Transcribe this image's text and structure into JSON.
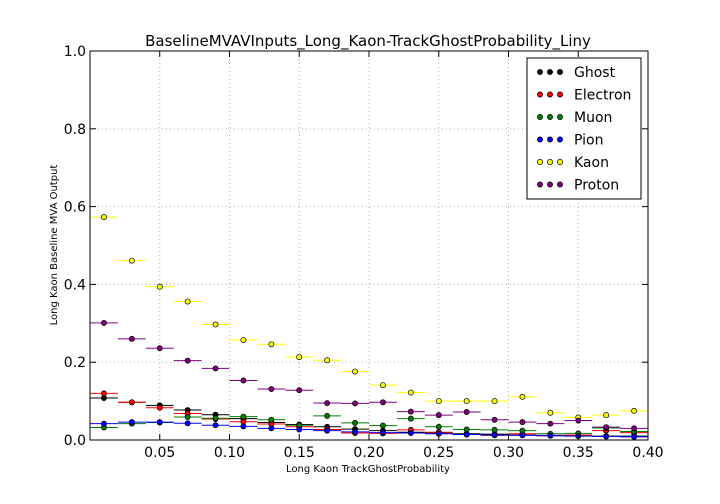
{
  "chart_data": {
    "type": "scatter",
    "title": "BaselineMVAVInputs_Long_Kaon-TrackGhostProbability_Liny",
    "xlabel": "Long Kaon TrackGhostProbability",
    "ylabel": "Long Kaon Baseline MVA Output",
    "xlim": [
      0.0,
      0.4
    ],
    "ylim": [
      0.0,
      1.0
    ],
    "x_ticks": [
      0.05,
      0.1,
      0.15,
      0.2,
      0.25,
      0.3,
      0.35,
      0.4
    ],
    "x_tick_labels": [
      "0.05",
      "0.10",
      "0.15",
      "0.20",
      "0.25",
      "0.30",
      "0.35",
      "0.40"
    ],
    "y_ticks": [
      0.0,
      0.2,
      0.4,
      0.6,
      0.8,
      1.0
    ],
    "y_tick_labels": [
      "0.0",
      "0.2",
      "0.4",
      "0.6",
      "0.8",
      "1.0"
    ],
    "grid": true,
    "legend_position": "top-right",
    "bin_width": 0.02,
    "x": [
      0.01,
      0.03,
      0.05,
      0.07,
      0.09,
      0.11,
      0.13,
      0.15,
      0.17,
      0.19,
      0.21,
      0.23,
      0.25,
      0.27,
      0.29,
      0.31,
      0.33,
      0.35,
      0.37,
      0.39
    ],
    "series": [
      {
        "name": "Ghost",
        "color": "#000000",
        "values": [
          0.108,
          0.097,
          0.089,
          0.077,
          0.065,
          0.055,
          0.045,
          0.04,
          0.034,
          0.028,
          0.024,
          0.02,
          0.018,
          0.016,
          0.015,
          0.013,
          0.012,
          0.011,
          0.01,
          0.01
        ]
      },
      {
        "name": "Electron",
        "color": "#ff0000",
        "values": [
          0.12,
          0.097,
          0.083,
          0.068,
          0.054,
          0.047,
          0.041,
          0.034,
          0.027,
          0.018,
          0.017,
          0.026,
          0.02,
          0.014,
          0.012,
          0.016,
          0.011,
          0.013,
          0.024,
          0.019
        ]
      },
      {
        "name": "Muon",
        "color": "#008000",
        "values": [
          0.032,
          0.042,
          0.045,
          0.059,
          0.056,
          0.06,
          0.052,
          0.038,
          0.062,
          0.044,
          0.037,
          0.055,
          0.034,
          0.027,
          0.026,
          0.024,
          0.016,
          0.017,
          0.031,
          0.022
        ]
      },
      {
        "name": "Pion",
        "color": "#0000ff",
        "values": [
          0.042,
          0.046,
          0.046,
          0.043,
          0.038,
          0.035,
          0.03,
          0.027,
          0.024,
          0.021,
          0.019,
          0.018,
          0.016,
          0.014,
          0.013,
          0.012,
          0.011,
          0.01,
          0.009,
          0.008
        ]
      },
      {
        "name": "Kaon",
        "color": "#ffff00",
        "values": [
          0.573,
          0.461,
          0.394,
          0.356,
          0.297,
          0.257,
          0.246,
          0.213,
          0.205,
          0.176,
          0.141,
          0.122,
          0.1,
          0.1,
          0.1,
          0.111,
          0.07,
          0.058,
          0.064,
          0.075
        ]
      },
      {
        "name": "Proton",
        "color": "#800080",
        "values": [
          0.301,
          0.26,
          0.236,
          0.204,
          0.184,
          0.153,
          0.131,
          0.128,
          0.095,
          0.094,
          0.097,
          0.073,
          0.064,
          0.072,
          0.052,
          0.046,
          0.042,
          0.05,
          0.033,
          0.03
        ]
      }
    ]
  }
}
